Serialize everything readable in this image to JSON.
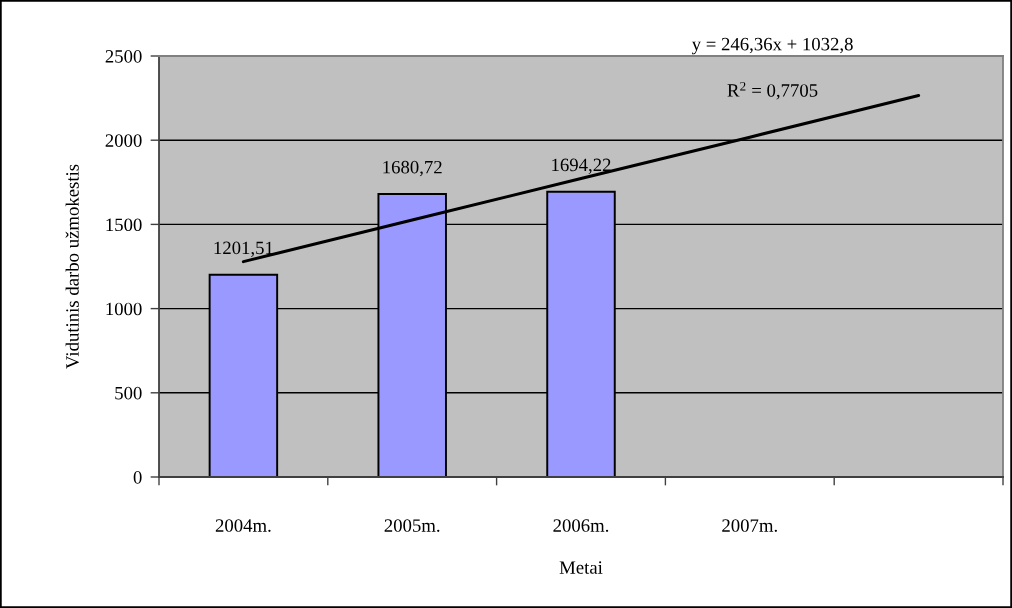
{
  "chart_data": {
    "type": "bar",
    "categories": [
      "2004m.",
      "2005m.",
      "2006m.",
      "2007m.",
      null
    ],
    "series": [
      {
        "color": "#9999ff",
        "values": [
          1201.51,
          1680.72,
          1694.22,
          null,
          null
        ],
        "value_labels": [
          "1201,51",
          "1680,72",
          "1694,22",
          null,
          null
        ]
      },
      {
        "type": "line",
        "color": "#000000",
        "values": [
          1279,
          1526,
          1772,
          2018,
          2265
        ]
      }
    ],
    "xlabel": "Metai",
    "ylabel": "Vidutinis darbo užmokestis",
    "ylim": [
      0,
      2500
    ],
    "yticks": [
      0,
      500,
      1000,
      1500,
      2000,
      2500
    ],
    "grid": "y",
    "annotations": [
      "y = 246,36x + 1032,8",
      "R$^{2}$ = 0,7705"
    ]
  }
}
